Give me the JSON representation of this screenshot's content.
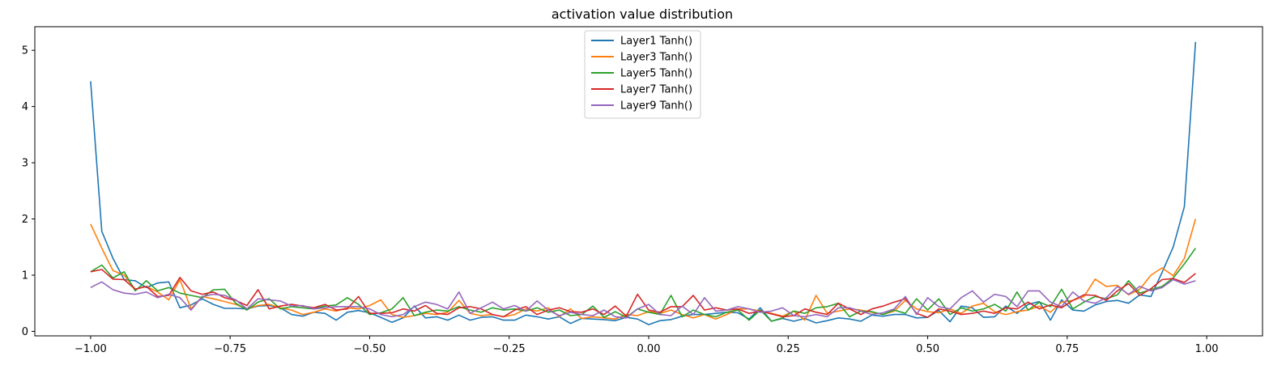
{
  "chart_data": {
    "type": "line",
    "title": "activation value distribution",
    "xlabel": "",
    "ylabel": "",
    "xlim": [
      -1.1,
      1.1
    ],
    "ylim": [
      -0.08,
      5.42
    ],
    "x_ticks": [
      -1.0,
      -0.75,
      -0.5,
      -0.25,
      0.0,
      0.25,
      0.5,
      0.75,
      1.0
    ],
    "x_tick_labels": [
      "−1.00",
      "−0.75",
      "−0.50",
      "−0.25",
      "0.00",
      "0.25",
      "0.50",
      "0.75",
      "1.00"
    ],
    "y_ticks": [
      0,
      1,
      2,
      3,
      4,
      5
    ],
    "y_tick_labels": [
      "0",
      "1",
      "2",
      "3",
      "4",
      "5"
    ],
    "grid": false,
    "legend_position": "top-center",
    "x": [
      -1.0,
      -0.98,
      -0.96,
      -0.94,
      -0.92,
      -0.9,
      -0.88,
      -0.86,
      -0.84,
      -0.82,
      -0.8,
      -0.78,
      -0.76,
      -0.74,
      -0.72,
      -0.7,
      -0.68,
      -0.66,
      -0.64,
      -0.62,
      -0.6,
      -0.58,
      -0.56,
      -0.54,
      -0.52,
      -0.5,
      -0.48,
      -0.46,
      -0.44,
      -0.42,
      -0.4,
      -0.38,
      -0.36,
      -0.34,
      -0.32,
      -0.3,
      -0.28,
      -0.26,
      -0.24,
      -0.22,
      -0.2,
      -0.18,
      -0.16,
      -0.14,
      -0.12,
      -0.1,
      -0.08,
      -0.06,
      -0.04,
      -0.02,
      0.0,
      0.02,
      0.04,
      0.06,
      0.08,
      0.1,
      0.12,
      0.14,
      0.16,
      0.18,
      0.2,
      0.22,
      0.24,
      0.26,
      0.28,
      0.3,
      0.32,
      0.34,
      0.36,
      0.38,
      0.4,
      0.42,
      0.44,
      0.46,
      0.48,
      0.5,
      0.52,
      0.54,
      0.56,
      0.58,
      0.6,
      0.62,
      0.64,
      0.66,
      0.68,
      0.7,
      0.72,
      0.74,
      0.76,
      0.78,
      0.8,
      0.82,
      0.84,
      0.86,
      0.88,
      0.9,
      0.92,
      0.94,
      0.96,
      0.98
    ],
    "series": [
      {
        "name": "Layer1 Tanh()",
        "color": "#1f77b4",
        "values": [
          4.45,
          1.78,
          1.3,
          0.92,
          0.9,
          0.78,
          0.86,
          0.88,
          0.42,
          0.47,
          0.58,
          0.48,
          0.41,
          0.41,
          0.4,
          0.45,
          0.46,
          0.42,
          0.3,
          0.27,
          0.34,
          0.32,
          0.2,
          0.34,
          0.37,
          0.33,
          0.25,
          0.16,
          0.24,
          0.45,
          0.24,
          0.26,
          0.2,
          0.29,
          0.2,
          0.25,
          0.26,
          0.2,
          0.2,
          0.29,
          0.26,
          0.22,
          0.26,
          0.14,
          0.23,
          0.22,
          0.21,
          0.19,
          0.25,
          0.22,
          0.12,
          0.19,
          0.21,
          0.27,
          0.3,
          0.3,
          0.32,
          0.34,
          0.33,
          0.22,
          0.42,
          0.18,
          0.23,
          0.18,
          0.23,
          0.15,
          0.19,
          0.24,
          0.22,
          0.18,
          0.29,
          0.27,
          0.3,
          0.3,
          0.24,
          0.25,
          0.37,
          0.17,
          0.45,
          0.42,
          0.25,
          0.26,
          0.45,
          0.32,
          0.48,
          0.53,
          0.2,
          0.56,
          0.38,
          0.36,
          0.47,
          0.53,
          0.55,
          0.5,
          0.65,
          0.62,
          1.05,
          1.5,
          2.22,
          5.15
        ]
      },
      {
        "name": "Layer3 Tanh()",
        "color": "#ff7f0e",
        "values": [
          1.91,
          1.48,
          1.08,
          1.0,
          0.75,
          0.8,
          0.7,
          0.56,
          0.92,
          0.4,
          0.62,
          0.58,
          0.53,
          0.48,
          0.4,
          0.46,
          0.48,
          0.42,
          0.38,
          0.3,
          0.34,
          0.4,
          0.36,
          0.42,
          0.4,
          0.46,
          0.56,
          0.3,
          0.25,
          0.28,
          0.32,
          0.3,
          0.34,
          0.55,
          0.32,
          0.28,
          0.3,
          0.26,
          0.3,
          0.4,
          0.36,
          0.42,
          0.26,
          0.4,
          0.23,
          0.26,
          0.24,
          0.22,
          0.3,
          0.28,
          0.35,
          0.32,
          0.38,
          0.3,
          0.24,
          0.3,
          0.22,
          0.3,
          0.4,
          0.4,
          0.36,
          0.32,
          0.27,
          0.36,
          0.2,
          0.64,
          0.32,
          0.36,
          0.4,
          0.38,
          0.34,
          0.3,
          0.36,
          0.55,
          0.4,
          0.35,
          0.33,
          0.4,
          0.32,
          0.45,
          0.5,
          0.35,
          0.3,
          0.35,
          0.38,
          0.45,
          0.34,
          0.52,
          0.55,
          0.62,
          0.93,
          0.8,
          0.82,
          0.65,
          0.75,
          1.0,
          1.13,
          0.99,
          1.3,
          2.0
        ]
      },
      {
        "name": "Layer5 Tanh()",
        "color": "#2ca02c",
        "values": [
          1.06,
          1.18,
          0.95,
          1.06,
          0.72,
          0.9,
          0.72,
          0.78,
          0.68,
          0.64,
          0.6,
          0.74,
          0.75,
          0.5,
          0.38,
          0.52,
          0.58,
          0.4,
          0.44,
          0.42,
          0.4,
          0.45,
          0.47,
          0.6,
          0.48,
          0.3,
          0.33,
          0.4,
          0.6,
          0.28,
          0.34,
          0.38,
          0.36,
          0.44,
          0.38,
          0.34,
          0.42,
          0.38,
          0.4,
          0.36,
          0.42,
          0.34,
          0.38,
          0.28,
          0.3,
          0.45,
          0.25,
          0.35,
          0.25,
          0.4,
          0.34,
          0.3,
          0.64,
          0.26,
          0.38,
          0.3,
          0.26,
          0.34,
          0.38,
          0.2,
          0.38,
          0.18,
          0.24,
          0.36,
          0.32,
          0.42,
          0.44,
          0.5,
          0.26,
          0.36,
          0.35,
          0.3,
          0.38,
          0.32,
          0.58,
          0.38,
          0.58,
          0.3,
          0.42,
          0.36,
          0.4,
          0.48,
          0.36,
          0.7,
          0.38,
          0.52,
          0.44,
          0.75,
          0.4,
          0.52,
          0.62,
          0.58,
          0.65,
          0.9,
          0.68,
          0.74,
          0.8,
          0.95,
          1.2,
          1.48
        ]
      },
      {
        "name": "Layer7 Tanh()",
        "color": "#d62728",
        "values": [
          1.06,
          1.1,
          0.93,
          0.92,
          0.75,
          0.8,
          0.62,
          0.64,
          0.96,
          0.72,
          0.66,
          0.7,
          0.6,
          0.55,
          0.46,
          0.74,
          0.4,
          0.45,
          0.48,
          0.45,
          0.42,
          0.48,
          0.38,
          0.4,
          0.62,
          0.32,
          0.32,
          0.33,
          0.4,
          0.36,
          0.46,
          0.32,
          0.3,
          0.42,
          0.44,
          0.4,
          0.3,
          0.26,
          0.38,
          0.44,
          0.3,
          0.38,
          0.42,
          0.35,
          0.34,
          0.4,
          0.3,
          0.45,
          0.27,
          0.66,
          0.38,
          0.34,
          0.44,
          0.44,
          0.64,
          0.38,
          0.42,
          0.38,
          0.4,
          0.32,
          0.36,
          0.31,
          0.26,
          0.28,
          0.4,
          0.34,
          0.3,
          0.5,
          0.4,
          0.3,
          0.4,
          0.45,
          0.52,
          0.58,
          0.32,
          0.25,
          0.4,
          0.36,
          0.3,
          0.32,
          0.36,
          0.32,
          0.42,
          0.4,
          0.52,
          0.4,
          0.47,
          0.42,
          0.55,
          0.65,
          0.64,
          0.55,
          0.72,
          0.85,
          0.64,
          0.76,
          0.92,
          0.94,
          0.87,
          1.03
        ]
      },
      {
        "name": "Layer9 Tanh()",
        "color": "#9467bd",
        "values": [
          0.78,
          0.88,
          0.74,
          0.68,
          0.66,
          0.7,
          0.6,
          0.66,
          0.6,
          0.38,
          0.62,
          0.66,
          0.64,
          0.56,
          0.4,
          0.58,
          0.56,
          0.54,
          0.45,
          0.46,
          0.4,
          0.42,
          0.44,
          0.44,
          0.44,
          0.4,
          0.3,
          0.26,
          0.3,
          0.44,
          0.52,
          0.48,
          0.4,
          0.7,
          0.32,
          0.42,
          0.52,
          0.4,
          0.46,
          0.36,
          0.54,
          0.38,
          0.28,
          0.34,
          0.3,
          0.28,
          0.38,
          0.26,
          0.24,
          0.4,
          0.48,
          0.3,
          0.28,
          0.45,
          0.3,
          0.6,
          0.36,
          0.38,
          0.44,
          0.4,
          0.34,
          0.36,
          0.42,
          0.28,
          0.26,
          0.3,
          0.26,
          0.42,
          0.42,
          0.36,
          0.3,
          0.33,
          0.4,
          0.62,
          0.3,
          0.6,
          0.44,
          0.4,
          0.6,
          0.72,
          0.52,
          0.66,
          0.62,
          0.44,
          0.72,
          0.72,
          0.52,
          0.44,
          0.7,
          0.54,
          0.5,
          0.6,
          0.8,
          0.66,
          0.8,
          0.72,
          0.78,
          0.92,
          0.84,
          0.9
        ]
      }
    ]
  }
}
